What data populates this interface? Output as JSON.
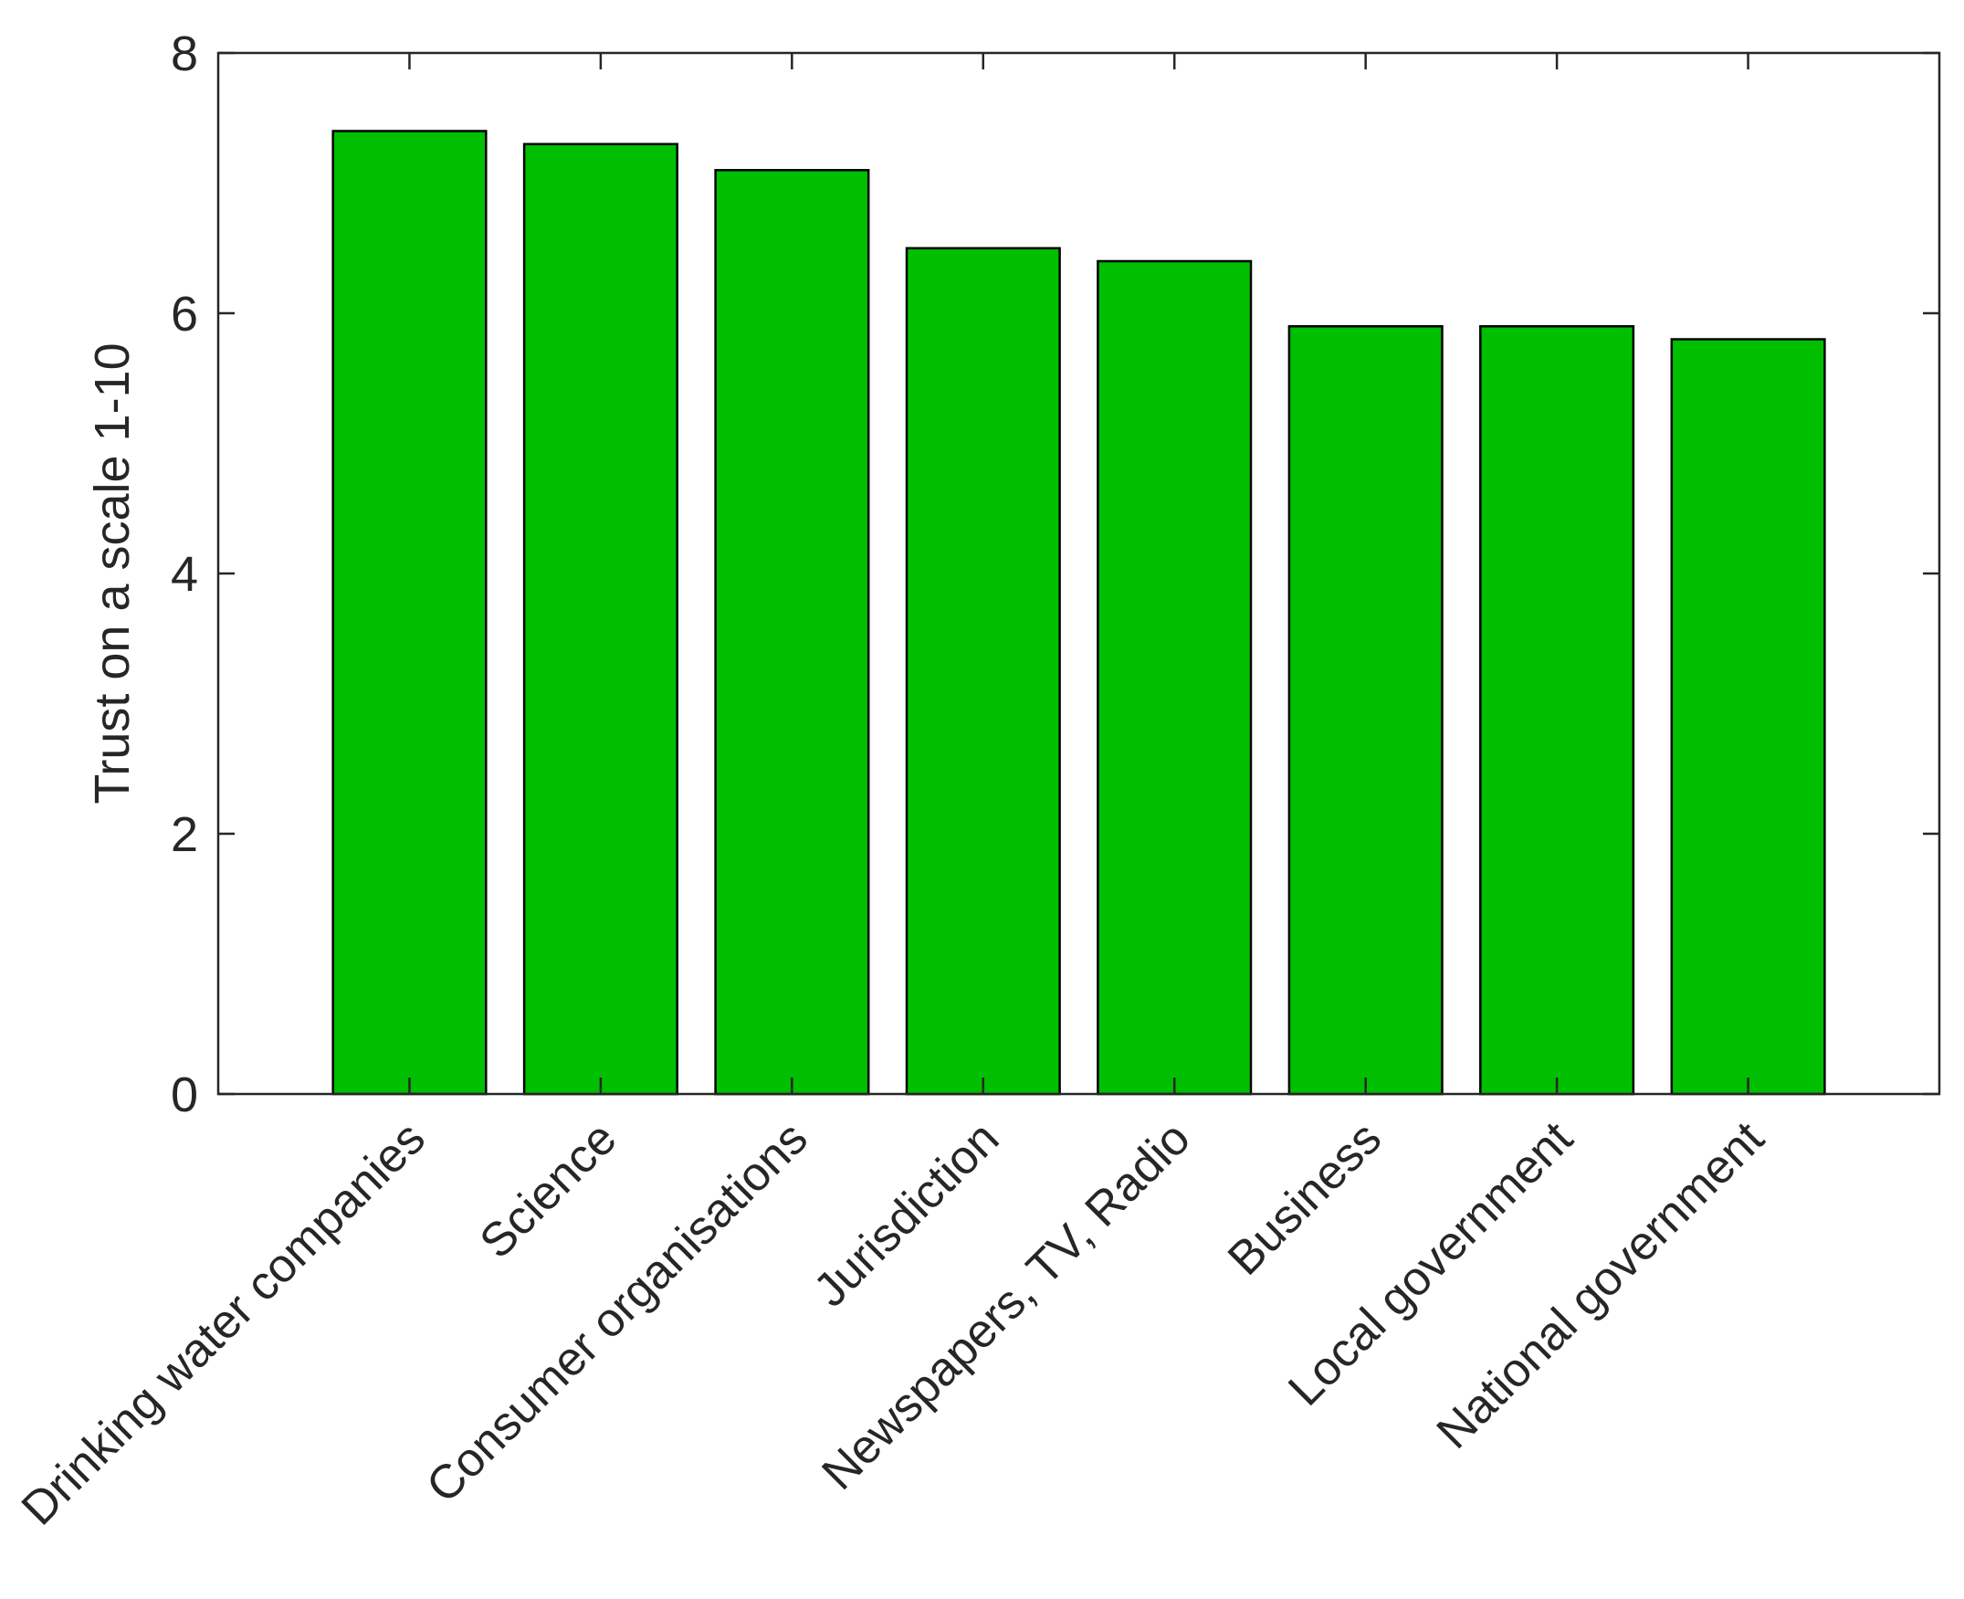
{
  "chart_data": {
    "type": "bar",
    "categories": [
      "Drinking water companies",
      "Science",
      "Consumer organisations",
      "Jurisdiction",
      "Newspapers, TV, Radio",
      "Business",
      "Local government",
      "National government"
    ],
    "values": [
      7.4,
      7.3,
      7.1,
      6.5,
      6.4,
      5.9,
      5.9,
      5.8
    ],
    "title": "",
    "xlabel": "",
    "ylabel": "Trust on a scale 1-10",
    "ylim": [
      0,
      8
    ],
    "yticks": [
      "0",
      "2",
      "4",
      "6",
      "8"
    ],
    "grid": false,
    "legend": "none",
    "bar_color": "#00bf00",
    "edge_color": "#000000"
  }
}
